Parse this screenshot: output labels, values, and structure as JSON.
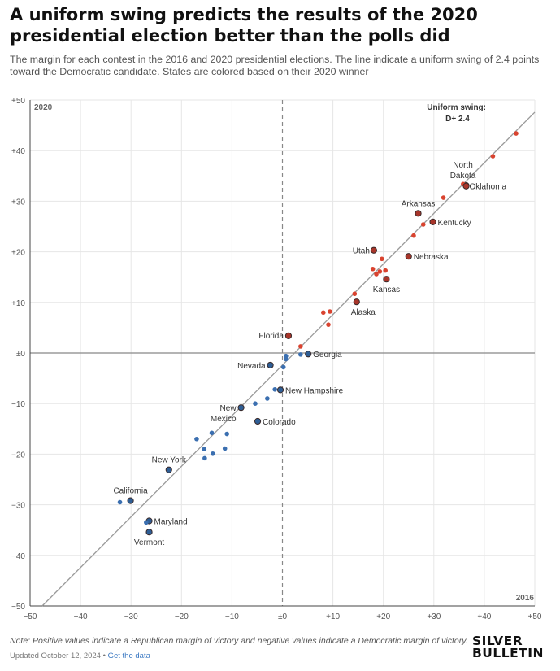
{
  "title": "A uniform swing predicts the results of the 2020 presidential election better than the polls did",
  "subtitle": "The margin for each contest in the 2016 and 2020 presidential elections. The line indicate a uniform swing of 2.4 points toward the Democratic candidate. States are colored based on their 2020 winner",
  "note": "Note: Positive values indicate a Republican margin of victory and negative values indicate a Democratic margin of victory.",
  "updated_text": "Updated October 12, 2024",
  "separator": "•",
  "data_link": "Get the data",
  "brand": {
    "line1": "SILVER",
    "line2": "BULLETIN"
  },
  "colors": {
    "republican": "#d9432f",
    "democrat": "#3b6fb0",
    "highlight_stroke": "#3a2a2a",
    "line": "#999999"
  },
  "chart_data": {
    "type": "scatter",
    "xlabel": "2016",
    "ylabel": "2020",
    "xlim": [
      -50,
      50
    ],
    "ylim": [
      -50,
      50
    ],
    "x_ticks": [
      -50,
      -40,
      -30,
      -20,
      -10,
      0,
      10,
      20,
      30,
      40,
      50
    ],
    "y_ticks": [
      -50,
      -40,
      -30,
      -20,
      -10,
      0,
      10,
      20,
      30,
      40,
      50
    ],
    "x_tick_labels": [
      "−50",
      "−40",
      "−30",
      "−20",
      "−10",
      "±0",
      "+10",
      "+20",
      "+30",
      "+40",
      "+50"
    ],
    "y_tick_labels": [
      "−50",
      "−40",
      "−30",
      "−20",
      "−10",
      "±0",
      "+10",
      "+20",
      "+30",
      "+40",
      "+50"
    ],
    "grid": true,
    "swing_line": {
      "label_line1": "Uniform swing:",
      "label_line2": "D+ 2.4",
      "offset": -2.4
    },
    "series": [
      {
        "winner": "R",
        "points": [
          {
            "x": 46.3,
            "y": 43.4
          },
          {
            "x": 41.7,
            "y": 38.9
          },
          {
            "x": 36.4,
            "y": 33.1,
            "label": "North Dakota",
            "highlight": true
          },
          {
            "x": 35.8,
            "y": 33.4
          },
          {
            "x": 36.4,
            "y": 33.0,
            "label": "Oklahoma",
            "highlight": true
          },
          {
            "x": 31.9,
            "y": 30.7
          },
          {
            "x": 26.9,
            "y": 27.6,
            "label": "Arkansas",
            "highlight": true
          },
          {
            "x": 29.8,
            "y": 25.9,
            "label": "Kentucky",
            "highlight": true
          },
          {
            "x": 27.9,
            "y": 25.4
          },
          {
            "x": 26.0,
            "y": 23.2
          },
          {
            "x": 18.1,
            "y": 20.3,
            "label": "Utah",
            "highlight": true
          },
          {
            "x": 25.0,
            "y": 19.1,
            "label": "Nebraska",
            "highlight": true
          },
          {
            "x": 19.7,
            "y": 18.6
          },
          {
            "x": 17.9,
            "y": 16.6
          },
          {
            "x": 20.4,
            "y": 16.3
          },
          {
            "x": 19.3,
            "y": 16.1
          },
          {
            "x": 18.6,
            "y": 15.6
          },
          {
            "x": 20.6,
            "y": 14.6,
            "label": "Kansas",
            "highlight": true
          },
          {
            "x": 14.3,
            "y": 11.7
          },
          {
            "x": 14.7,
            "y": 10.1,
            "label": "Alaska",
            "highlight": true
          },
          {
            "x": 9.4,
            "y": 8.2
          },
          {
            "x": 8.1,
            "y": 8.0
          },
          {
            "x": 9.1,
            "y": 5.6
          },
          {
            "x": 1.2,
            "y": 3.4,
            "label": "Florida",
            "highlight": true
          },
          {
            "x": 3.6,
            "y": 1.3
          }
        ]
      },
      {
        "winner": "D",
        "points": [
          {
            "x": 5.1,
            "y": -0.2,
            "label": "Georgia",
            "highlight": true
          },
          {
            "x": 3.6,
            "y": -0.3
          },
          {
            "x": 0.7,
            "y": -1.2
          },
          {
            "x": 0.7,
            "y": -0.6
          },
          {
            "x": 0.2,
            "y": -2.8
          },
          {
            "x": -2.4,
            "y": -2.4,
            "label": "Nevada",
            "highlight": true
          },
          {
            "x": -0.4,
            "y": -7.3,
            "label": "New Hampshire",
            "highlight": true
          },
          {
            "x": -1.5,
            "y": -7.2
          },
          {
            "x": -3.0,
            "y": -9.0
          },
          {
            "x": -5.4,
            "y": -10.0
          },
          {
            "x": -8.2,
            "y": -10.8,
            "label": "New Mexico",
            "highlight": true
          },
          {
            "x": -4.9,
            "y": -13.5,
            "label": "Colorado",
            "highlight": true
          },
          {
            "x": -11.0,
            "y": -16.0
          },
          {
            "x": -14.0,
            "y": -15.8
          },
          {
            "x": -17.0,
            "y": -17.0
          },
          {
            "x": -15.5,
            "y": -19.0
          },
          {
            "x": -11.4,
            "y": -18.9
          },
          {
            "x": -13.8,
            "y": -19.9
          },
          {
            "x": -15.4,
            "y": -20.8
          },
          {
            "x": -22.5,
            "y": -23.1,
            "label": "New York",
            "highlight": true
          },
          {
            "x": -30.1,
            "y": -29.2,
            "label": "California",
            "highlight": true
          },
          {
            "x": -32.2,
            "y": -29.5
          },
          {
            "x": -26.4,
            "y": -33.2,
            "label": "Maryland",
            "highlight": true
          },
          {
            "x": -27.0,
            "y": -33.5
          },
          {
            "x": -26.4,
            "y": -35.4,
            "label": "Vermont",
            "highlight": true
          }
        ]
      }
    ]
  }
}
